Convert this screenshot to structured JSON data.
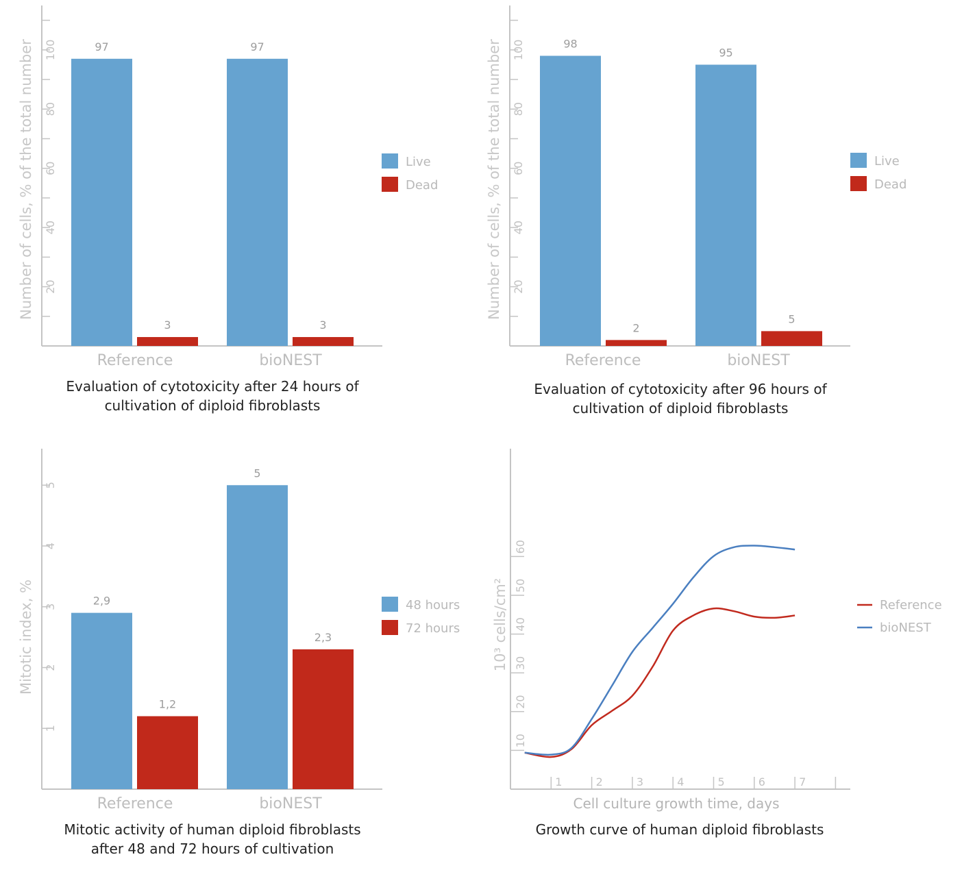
{
  "colors": {
    "blue": "#66a3d0",
    "red": "#c1291b",
    "ref_line": "#c12a1e",
    "bionest_line": "#4a7fc0"
  },
  "chart_data": [
    {
      "type": "bar",
      "title": "Evaluation of cytotoxicity after 24 hours of cultivation of diploid fibroblasts",
      "title_lines": [
        "Evaluation of cytotoxicity after 24 hours of",
        "cultivation of diploid fibroblasts"
      ],
      "ylabel": "Number of cells, % of the total number",
      "ylim": [
        0,
        115
      ],
      "yticks": [
        "20",
        "40",
        "60",
        "80",
        "100"
      ],
      "categories": [
        "Reference",
        "bioNEST"
      ],
      "series": [
        {
          "name": "Live",
          "values": [
            97,
            97
          ],
          "labels": [
            "97",
            "97"
          ]
        },
        {
          "name": "Dead",
          "values": [
            3,
            3
          ],
          "labels": [
            "3",
            "3"
          ]
        }
      ],
      "legend": "right"
    },
    {
      "type": "bar",
      "title": "Evaluation of cytotoxicity after 96 hours of cultivation of diploid fibroblasts",
      "title_lines": [
        "Evaluation of cytotoxicity after 96 hours of",
        "cultivation of diploid fibroblasts"
      ],
      "ylabel": "Number of cells, % of the total number",
      "ylim": [
        0,
        115
      ],
      "yticks": [
        "20",
        "40",
        "60",
        "80",
        "100"
      ],
      "categories": [
        "Reference",
        "bioNEST"
      ],
      "series": [
        {
          "name": "Live",
          "values": [
            98,
            95
          ],
          "labels": [
            "98",
            "95"
          ]
        },
        {
          "name": "Dead",
          "values": [
            2,
            5
          ],
          "labels": [
            "2",
            "5"
          ]
        }
      ],
      "legend": "right"
    },
    {
      "type": "bar",
      "title": "Mitotic activity of human diploid fibroblasts after 48 and 72 hours of cultivation",
      "title_lines": [
        "Mitotic activity of human diploid fibroblasts",
        "after 48 and 72 hours of cultivation"
      ],
      "ylabel": "Mitotic index, %",
      "ylim": [
        0,
        5.6
      ],
      "yticks": [
        "1",
        "2",
        "3",
        "4",
        "5"
      ],
      "categories": [
        "Reference",
        "bioNEST"
      ],
      "series": [
        {
          "name": "48 hours",
          "values": [
            2.9,
            5
          ],
          "labels": [
            "2,9",
            "5"
          ]
        },
        {
          "name": "72 hours",
          "values": [
            1.2,
            2.3
          ],
          "labels": [
            "1,2",
            "2,3"
          ]
        }
      ],
      "legend": "right"
    },
    {
      "type": "line",
      "title": "Growth curve of human diploid fibroblasts",
      "title_lines": [
        "Growth curve of human diploid fibroblasts"
      ],
      "ylabel": "10³ cells/cm²",
      "xlabel": "Cell culture growth time, days",
      "xlim": [
        0,
        8
      ],
      "ylim": [
        0,
        73
      ],
      "xticks": [
        "1",
        "2",
        "3",
        "4",
        "5",
        "6",
        "7"
      ],
      "yticks": [
        "10",
        "20",
        "30",
        "40",
        "50",
        "60"
      ],
      "series": [
        {
          "name": "Reference",
          "x": [
            0.35,
            1,
            1.5,
            2,
            2.5,
            3,
            3.5,
            4,
            4.5,
            5,
            5.5,
            6,
            6.5,
            7
          ],
          "y": [
            9.4,
            8.3,
            10.3,
            16.5,
            20.2,
            24.1,
            31.6,
            40.9,
            44.8,
            46.6,
            45.9,
            44.5,
            44.2,
            44.8
          ]
        },
        {
          "name": "bioNEST",
          "x": [
            0.35,
            1,
            1.5,
            2,
            2.5,
            3,
            3.5,
            4,
            4.5,
            5,
            5.5,
            6,
            6.5,
            7
          ],
          "y": [
            9.4,
            8.9,
            10.6,
            18.1,
            26.7,
            35.4,
            41.6,
            47.8,
            54.6,
            60.1,
            62.4,
            62.8,
            62.4,
            61.8
          ]
        }
      ],
      "legend": "right"
    }
  ]
}
